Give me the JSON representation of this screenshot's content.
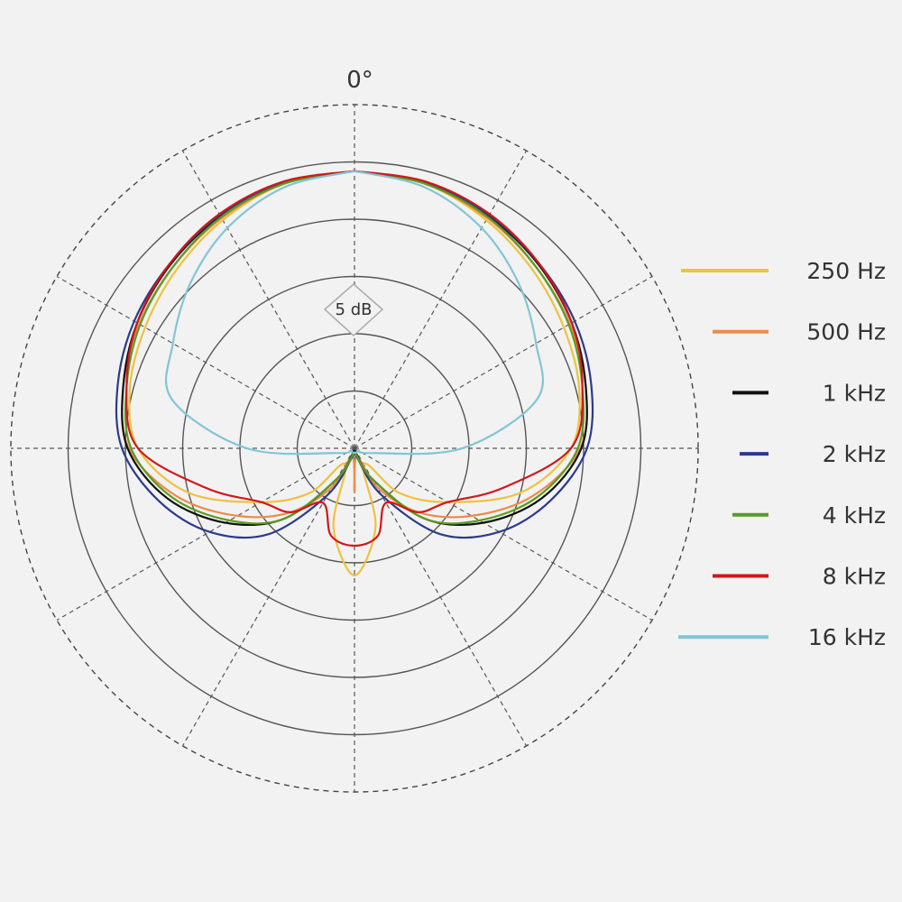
{
  "chart_data": {
    "type": "polar",
    "theta": [
      0,
      15,
      30,
      45,
      60,
      75,
      90,
      105,
      120,
      135,
      150,
      165,
      180,
      195,
      210,
      225,
      240,
      255,
      270,
      285,
      300,
      315,
      330,
      345,
      360
    ],
    "rlim": [
      0,
      30
    ],
    "rticks": [
      5,
      10,
      15,
      20,
      25,
      30
    ],
    "thetaticks": [
      {
        "value": 0,
        "label": "0°"
      },
      30,
      60,
      90,
      120,
      150,
      180,
      210,
      240,
      270,
      300,
      330
    ],
    "annotation": "5 dB",
    "series": [
      {
        "name": "250 Hz",
        "color": "#efc13f",
        "values": [
          24.2,
          23.9,
          23.0,
          22.0,
          21.1,
          20.3,
          18.9,
          15.0,
          9.4,
          5.5,
          1.6,
          7.1,
          11.1,
          7.1,
          1.6,
          5.5,
          9.4,
          15.0,
          18.9,
          20.3,
          21.1,
          22.0,
          23.0,
          23.9,
          24.2
        ]
      },
      {
        "name": "500 Hz",
        "color": "#ef8a45",
        "values": [
          24.2,
          23.9,
          23.2,
          22.4,
          21.7,
          20.9,
          19.7,
          16.1,
          11.8,
          7.9,
          3.9,
          0.8,
          3.8,
          0.8,
          3.9,
          7.9,
          11.8,
          16.1,
          19.7,
          20.9,
          21.7,
          22.4,
          23.2,
          23.9,
          24.2
        ]
      },
      {
        "name": "1 kHz",
        "color": "#111111",
        "values": [
          24.2,
          24.0,
          23.4,
          22.7,
          21.9,
          20.9,
          19.8,
          16.9,
          13.0,
          8.7,
          3.1,
          0.4,
          0.4,
          0.4,
          3.1,
          8.7,
          13.0,
          16.9,
          19.8,
          20.9,
          21.9,
          22.7,
          23.4,
          24.0,
          24.2
        ]
      },
      {
        "name": "2 kHz",
        "color": "#2b3a8c",
        "values": [
          24.2,
          24.0,
          23.5,
          22.8,
          22.2,
          21.4,
          20.3,
          17.7,
          14.6,
          10.6,
          4.7,
          0.8,
          0.4,
          0.8,
          4.7,
          10.6,
          14.6,
          17.7,
          20.3,
          21.4,
          22.2,
          22.8,
          23.5,
          24.0,
          24.2
        ]
      },
      {
        "name": "4 kHz",
        "color": "#5b9b22",
        "values": [
          24.2,
          23.9,
          23.3,
          22.4,
          21.6,
          20.6,
          19.5,
          16.5,
          12.6,
          8.7,
          3.1,
          0.6,
          0.4,
          0.6,
          3.1,
          8.7,
          12.6,
          16.5,
          19.5,
          20.6,
          21.6,
          22.4,
          23.3,
          23.9,
          24.2
        ]
      },
      {
        "name": "8 kHz",
        "color": "#d0181c",
        "values": [
          24.2,
          24.1,
          23.6,
          22.8,
          21.9,
          20.6,
          18.9,
          13.4,
          9.4,
          7.9,
          5.5,
          7.9,
          8.5,
          7.9,
          5.5,
          7.9,
          9.4,
          13.4,
          18.9,
          20.6,
          21.9,
          22.8,
          23.6,
          24.1,
          24.2
        ]
      },
      {
        "name": "16 kHz",
        "color": "#82c5d5",
        "values": [
          24.2,
          23.6,
          22.2,
          20.3,
          18.3,
          16.5,
          9.4,
          1.6,
          0.4,
          0.4,
          0.4,
          0.4,
          0.4,
          0.4,
          0.4,
          0.4,
          0.4,
          1.6,
          9.4,
          16.5,
          18.3,
          20.3,
          22.2,
          23.6,
          24.2
        ]
      }
    ]
  }
}
